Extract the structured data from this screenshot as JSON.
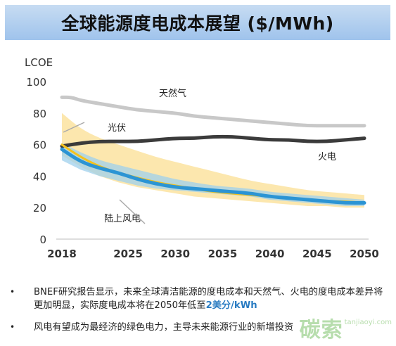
{
  "title": "全球能源度电成本展望 ($/MWh)",
  "chart_data": {
    "type": "line",
    "ylabel": "LCOE",
    "xlim": [
      2018,
      2050
    ],
    "ylim": [
      0,
      100
    ],
    "x_ticks": [
      2018,
      2025,
      2030,
      2035,
      2040,
      2045,
      2050
    ],
    "y_ticks": [
      0,
      20,
      40,
      60,
      80,
      100
    ],
    "grid": false,
    "series": [
      {
        "name": "天然气",
        "color": "#c8c8c8",
        "x": [
          2018,
          2019,
          2020,
          2022,
          2024,
          2026,
          2028,
          2030,
          2032,
          2034,
          2036,
          2038,
          2040,
          2042,
          2044,
          2046,
          2048,
          2050
        ],
        "values": [
          90,
          90,
          88,
          86,
          84,
          82,
          81,
          80,
          78,
          77,
          76,
          75,
          74,
          73,
          72,
          72,
          72,
          72
        ]
      },
      {
        "name": "火电",
        "color": "#3b3b3b",
        "x": [
          2018,
          2020,
          2022,
          2024,
          2026,
          2028,
          2030,
          2032,
          2034,
          2036,
          2038,
          2040,
          2042,
          2044,
          2046,
          2048,
          2050
        ],
        "values": [
          59,
          61,
          62,
          62,
          62,
          63,
          64,
          64,
          65,
          65,
          64,
          63,
          63,
          62,
          62,
          63,
          64
        ]
      },
      {
        "name": "光伏",
        "color": "#f5c21b",
        "band_color": "#fbe3a0",
        "x": [
          2018,
          2020,
          2022,
          2024,
          2026,
          2028,
          2030,
          2032,
          2034,
          2036,
          2038,
          2040,
          2042,
          2044,
          2046,
          2048,
          2050
        ],
        "values": [
          60,
          52,
          46,
          42,
          39,
          36,
          34,
          32,
          30,
          29,
          28,
          27,
          26,
          25,
          24,
          24,
          23
        ],
        "low": [
          53,
          46,
          40,
          36,
          33,
          31,
          29,
          27,
          26,
          25,
          24,
          23,
          22,
          21,
          21,
          20,
          20
        ],
        "high": [
          80,
          70,
          64,
          60,
          56,
          52,
          49,
          46,
          43,
          40,
          37,
          35,
          33,
          31,
          30,
          29,
          28
        ]
      },
      {
        "name": "陆上风电",
        "color": "#2b94d4",
        "band_color": "#9fd0ec",
        "x": [
          2018,
          2020,
          2022,
          2024,
          2026,
          2028,
          2030,
          2032,
          2034,
          2036,
          2038,
          2040,
          2042,
          2044,
          2046,
          2048,
          2050
        ],
        "values": [
          57,
          49,
          45,
          42,
          38,
          35,
          33,
          32,
          31,
          30,
          29,
          27,
          26,
          25,
          24,
          23,
          23
        ],
        "low": [
          50,
          44,
          40,
          37,
          34,
          32,
          31,
          30,
          29,
          28,
          27,
          25,
          24,
          23,
          22,
          21,
          21
        ],
        "high": [
          61,
          55,
          50,
          47,
          44,
          41,
          38,
          36,
          34,
          33,
          32,
          30,
          29,
          28,
          27,
          26,
          25
        ]
      }
    ]
  },
  "bullets": [
    {
      "text": "BNEF研究报告显示，未来全球清洁能源的度电成本和天然气、火电的度电成本差异将更加明显，实际度电成本将在2050年低至",
      "highlight": "2美分/kWh"
    },
    {
      "text": "风电有望成为最经济的绿色电力，主导未来能源行业的新增投资",
      "highlight": ""
    }
  ],
  "watermark": {
    "logo": "碳索",
    "url": "tanjiaoyi.com"
  }
}
